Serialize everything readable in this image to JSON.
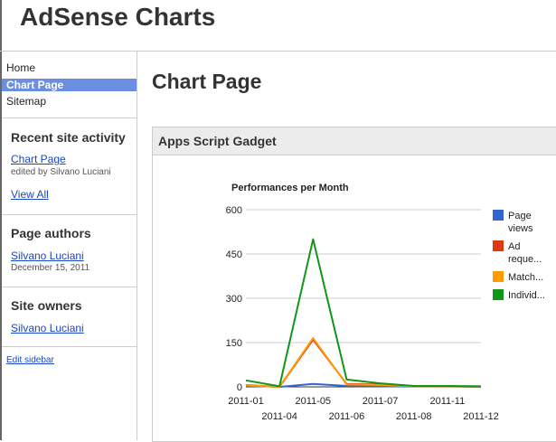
{
  "site": {
    "title": "AdSense Charts"
  },
  "nav": {
    "home": "Home",
    "chart_page": "Chart Page",
    "sitemap": "Sitemap"
  },
  "recent": {
    "heading": "Recent site activity",
    "link": "Chart Page",
    "edited_by": "edited by Silvano Luciani",
    "view_all": "View All"
  },
  "authors": {
    "heading": "Page authors",
    "name": "Silvano Luciani",
    "date": "December 15, 2011"
  },
  "owners": {
    "heading": "Site owners",
    "name": "Silvano Luciani"
  },
  "edit_sidebar": "Edit sidebar",
  "page": {
    "title": "Chart Page"
  },
  "gadget": {
    "title": "Apps Script Gadget"
  },
  "chart_data": {
    "type": "line",
    "title": "Performances per Month",
    "x": [
      "2011-01",
      "2011-04",
      "2011-05",
      "2011-06",
      "2011-07",
      "2011-08",
      "2011-11",
      "2011-12"
    ],
    "ylim": [
      0,
      600
    ],
    "yticks": [
      0,
      150,
      300,
      450,
      600
    ],
    "grid": true,
    "legend_position": "right",
    "series": [
      {
        "name": "Page views",
        "legend_lines": [
          "Page",
          "views"
        ],
        "color": "#3366cc",
        "values": [
          4,
          0,
          10,
          3,
          2,
          1,
          1,
          0
        ]
      },
      {
        "name": "Ad reque...",
        "legend_lines": [
          "Ad",
          "reque..."
        ],
        "color": "#dc3912",
        "values": [
          6,
          0,
          160,
          10,
          8,
          3,
          2,
          1
        ]
      },
      {
        "name": "Match...",
        "legend_lines": [
          "Match..."
        ],
        "color": "#ff9900",
        "values": [
          5,
          0,
          165,
          8,
          6,
          2,
          2,
          1
        ]
      },
      {
        "name": "Individ...",
        "legend_lines": [
          "Individ..."
        ],
        "color": "#109618",
        "values": [
          22,
          2,
          500,
          25,
          12,
          3,
          3,
          2
        ]
      }
    ]
  }
}
